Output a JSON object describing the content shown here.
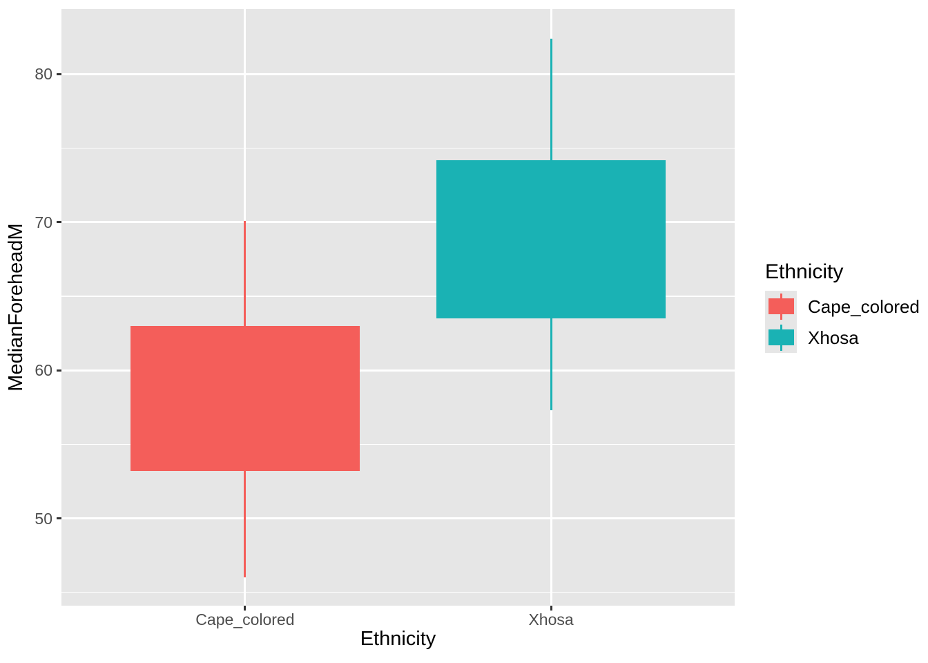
{
  "figure": {
    "background": "#FFFFFF",
    "panel_background": "#E6E6E6",
    "legend_key_background": "#E6E6E6",
    "gridline_color": "#FFFFFF",
    "tick_mark_color": "#333333",
    "tick_label_color": "#4D4D4D",
    "axis_title_color": "#000000"
  },
  "axes": {
    "x": {
      "title": "Ethnicity",
      "tick_labels": [
        "Cape_colored",
        "Xhosa"
      ]
    },
    "y": {
      "title": "MedianForeheadM",
      "tick_labels": [
        "50",
        "60",
        "70",
        "80"
      ]
    }
  },
  "legend": {
    "title": "Ethnicity",
    "entries": [
      {
        "label": "Cape_colored",
        "color": "#F45E5A"
      },
      {
        "label": "Xhosa",
        "color": "#1AB2B4"
      }
    ]
  },
  "chart_data": {
    "type": "boxplot",
    "title": "",
    "xlabel": "Ethnicity",
    "ylabel": "MedianForeheadM",
    "categories": [
      "Cape_colored",
      "Xhosa"
    ],
    "series": [
      {
        "name": "Cape_colored",
        "color": "#F45E5A",
        "whisker_low": 46.0,
        "q1": 53.2,
        "median": null,
        "q3": 63.0,
        "whisker_high": 70.1,
        "note": "median line not visible (drawn in same color as fill)"
      },
      {
        "name": "Xhosa",
        "color": "#1AB2B4",
        "whisker_low": 57.3,
        "q1": 63.5,
        "median": null,
        "q3": 74.2,
        "whisker_high": 82.4,
        "note": "median line not visible (drawn in same color as fill)"
      }
    ],
    "ylim": [
      44.1,
      84.4
    ],
    "yticks": [
      50,
      60,
      70,
      80
    ],
    "minor_gridlines": [
      45,
      55,
      65,
      75
    ],
    "grid": true,
    "legend_title": "Ethnicity",
    "legend_position": "right",
    "panel_theme": "ggplot2 grey"
  }
}
